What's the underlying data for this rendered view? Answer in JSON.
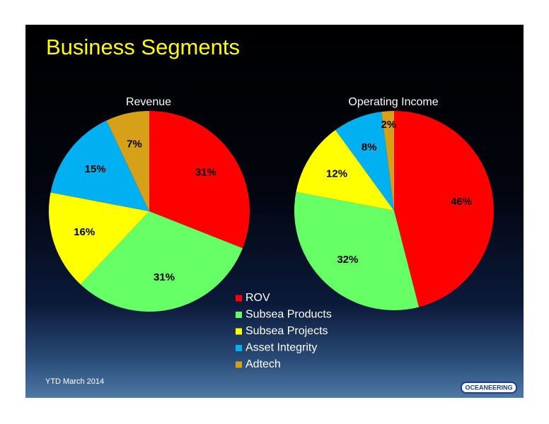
{
  "header": {
    "title": "Business Segments"
  },
  "footnote": "YTD March 2014",
  "logo": "OCEANEERING",
  "chart_data": [
    {
      "type": "pie",
      "title": "Revenue",
      "categories": [
        "ROV",
        "Subsea Products",
        "Subsea Projects",
        "Asset Integrity",
        "Adtech"
      ],
      "values": [
        31,
        31,
        16,
        15,
        7
      ],
      "value_labels": [
        "31%",
        "31%",
        "16%",
        "15%",
        "7%"
      ],
      "colors": [
        "#ff0000",
        "#66ff66",
        "#ffff00",
        "#00b0f0",
        "#d6a018"
      ],
      "legend": true
    },
    {
      "type": "pie",
      "title": "Operating Income",
      "categories": [
        "ROV",
        "Subsea Products",
        "Subsea Projects",
        "Asset Integrity",
        "Adtech"
      ],
      "values": [
        46,
        32,
        12,
        8,
        2
      ],
      "value_labels": [
        "46%",
        "32%",
        "12%",
        "8%",
        "2%"
      ],
      "colors": [
        "#ff0000",
        "#66ff66",
        "#ffff00",
        "#00b0f0",
        "#d6a018"
      ],
      "legend": false
    }
  ]
}
